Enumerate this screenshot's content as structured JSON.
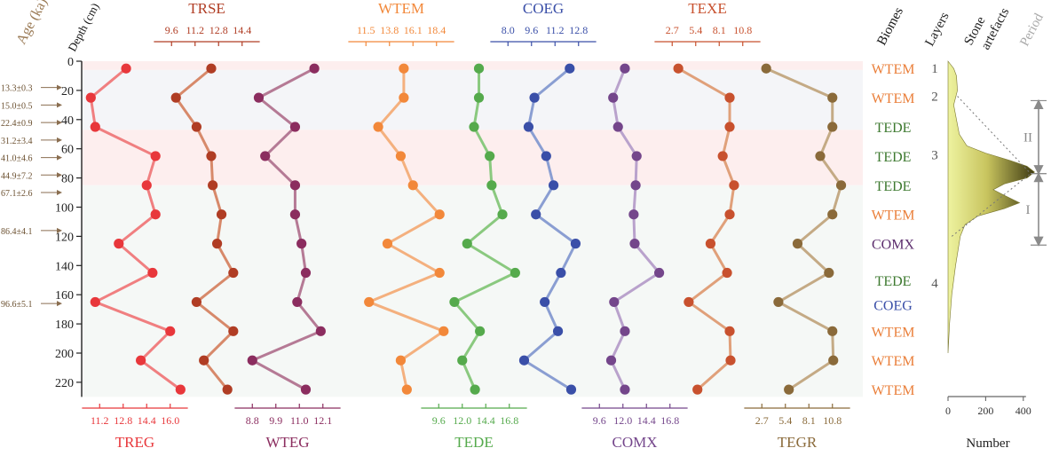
{
  "chart_data": {
    "type": "line",
    "orientation": "vertical-profiles",
    "y_axis": {
      "label": "Depth (cm)",
      "range": [
        0,
        230
      ],
      "ticks": [
        0,
        20,
        40,
        60,
        80,
        100,
        120,
        140,
        160,
        180,
        200,
        220
      ]
    },
    "age_axis": {
      "label": "Age (ka)",
      "markers": [
        {
          "depth": 18,
          "label": "13.3±0.3"
        },
        {
          "depth": 30,
          "label": "15.0±0.5"
        },
        {
          "depth": 42,
          "label": "22.4±0.9"
        },
        {
          "depth": 54,
          "label": "31.2±3.4"
        },
        {
          "depth": 66,
          "label": "41.0±4.6"
        },
        {
          "depth": 78,
          "label": "44.9±7.2"
        },
        {
          "depth": 90,
          "label": "67.1±2.6"
        },
        {
          "depth": 116,
          "label": "86.4±4.1"
        },
        {
          "depth": 166,
          "label": "96.6±5.1"
        }
      ]
    },
    "shaded_bands": [
      {
        "from": 0,
        "to": 6,
        "color": "#fdeeee"
      },
      {
        "from": 6,
        "to": 47,
        "color": "#f4f5f8"
      },
      {
        "from": 47,
        "to": 85,
        "color": "#fdeeee"
      },
      {
        "from": 85,
        "to": 230,
        "color": "#f5f8f6"
      }
    ],
    "depths": [
      5,
      25,
      45,
      65,
      85,
      105,
      125,
      145,
      165,
      185,
      205,
      225
    ],
    "series": [
      {
        "name": "TREG",
        "position": "bottom",
        "color": "#e8373b",
        "line_color": "#f07f80",
        "ticks": [
          11.2,
          12.8,
          14.4,
          16.0
        ],
        "values": [
          13.0,
          10.6,
          10.9,
          15.0,
          14.4,
          15.0,
          12.5,
          14.8,
          10.9,
          16.0,
          14.0,
          16.7
        ]
      },
      {
        "name": "TRSE",
        "position": "top",
        "color": "#b03d24",
        "line_color": "#d7896a",
        "ticks": [
          9.6,
          11.2,
          12.8,
          14.4
        ],
        "values": [
          12.3,
          9.9,
          11.3,
          12.3,
          12.4,
          13.0,
          12.7,
          13.8,
          11.3,
          13.8,
          11.8,
          13.4
        ]
      },
      {
        "name": "WTEG",
        "position": "bottom",
        "color": "#8b2d5f",
        "line_color": "#b57a95",
        "ticks": [
          8.8,
          9.9,
          11.0,
          12.1
        ],
        "values": [
          11.7,
          9.1,
          10.8,
          9.4,
          10.8,
          10.8,
          11.1,
          11.3,
          10.9,
          12.0,
          8.8,
          11.3
        ]
      },
      {
        "name": "WTEM",
        "position": "top",
        "color": "#f2883a",
        "line_color": "#f4b07e",
        "ticks": [
          11.5,
          13.8,
          16.1,
          18.4
        ],
        "values": [
          15.2,
          15.2,
          12.7,
          14.9,
          16.1,
          18.7,
          13.6,
          18.7,
          11.8,
          19.1,
          14.9,
          15.5
        ]
      },
      {
        "name": "TEDE",
        "position": "bottom",
        "color": "#55aa4c",
        "line_color": "#8ac97f",
        "ticks": [
          9.6,
          12.0,
          14.4,
          16.8
        ],
        "values": [
          13.7,
          13.7,
          13.2,
          14.8,
          15.0,
          16.1,
          12.5,
          17.4,
          11.2,
          13.8,
          12.0,
          13.3
        ]
      },
      {
        "name": "COEG",
        "position": "top",
        "color": "#3a4fa8",
        "line_color": "#8a9ed2",
        "ticks": [
          8.0,
          9.6,
          11.2,
          12.8
        ],
        "values": [
          12.2,
          9.8,
          9.4,
          10.6,
          11.1,
          9.9,
          12.6,
          11.6,
          10.5,
          11.4,
          9.1,
          12.3
        ]
      },
      {
        "name": "COMX",
        "position": "bottom",
        "color": "#74468b",
        "line_color": "#b9a2cc",
        "ticks": [
          9.6,
          12.0,
          14.4,
          16.8
        ],
        "values": [
          12.2,
          11.0,
          11.5,
          13.4,
          13.3,
          13.1,
          13.2,
          15.7,
          11.1,
          12.2,
          10.8,
          12.2
        ]
      },
      {
        "name": "TEXE",
        "position": "top",
        "color": "#c8512e",
        "line_color": "#e0a07a",
        "ticks": [
          2.7,
          5.4,
          8.1,
          10.8
        ],
        "values": [
          3.4,
          9.3,
          9.3,
          8.5,
          9.8,
          9.3,
          7.1,
          9.0,
          4.6,
          9.3,
          9.4,
          5.6
        ]
      },
      {
        "name": "TEGR",
        "position": "bottom",
        "color": "#8a6a3a",
        "line_color": "#c4aa85",
        "ticks": [
          2.7,
          5.4,
          8.1,
          10.8
        ],
        "values": [
          3.2,
          10.8,
          10.8,
          9.4,
          11.8,
          10.8,
          6.8,
          10.4,
          4.6,
          10.8,
          10.9,
          5.8
        ]
      }
    ],
    "biomes": {
      "title": "Biomes",
      "labels": [
        "WTEM",
        "WTEM",
        "TEDE",
        "TEDE",
        "TEDE",
        "WTEM",
        "COMX",
        "TEDE",
        "COEG",
        "WTEM",
        "WTEM",
        "WTEM"
      ],
      "depths": [
        5,
        25,
        45,
        65,
        85,
        105,
        125,
        150,
        167,
        185,
        205,
        225
      ],
      "colors": {
        "WTEM": "#ea7f3a",
        "TEDE": "#3e7a30",
        "COMX": "#5d2e6e",
        "COEG": "#3a4fa8"
      }
    },
    "layers": {
      "title": "Layers",
      "labels": [
        {
          "text": "1",
          "depth": 5
        },
        {
          "text": "2",
          "depth": 24
        },
        {
          "text": "3",
          "depth": 64
        },
        {
          "text": "4",
          "depth": 152
        }
      ]
    },
    "stone_artefacts": {
      "title": "Stone artefacts",
      "xlabel": "Number",
      "ticks": [
        0,
        200,
        400
      ],
      "depth_profile": [
        [
          0,
          0
        ],
        [
          5,
          30
        ],
        [
          10,
          45
        ],
        [
          20,
          50
        ],
        [
          30,
          30
        ],
        [
          40,
          45
        ],
        [
          50,
          60
        ],
        [
          58,
          100
        ],
        [
          63,
          200
        ],
        [
          68,
          330
        ],
        [
          72,
          420
        ],
        [
          76,
          460
        ],
        [
          80,
          420
        ],
        [
          84,
          300
        ],
        [
          88,
          240
        ],
        [
          92,
          300
        ],
        [
          97,
          380
        ],
        [
          101,
          300
        ],
        [
          106,
          160
        ],
        [
          112,
          90
        ],
        [
          120,
          65
        ],
        [
          140,
          40
        ],
        [
          160,
          20
        ],
        [
          180,
          8
        ],
        [
          200,
          0
        ]
      ]
    },
    "periods": {
      "title": "Period",
      "items": [
        {
          "label": "II",
          "from": 27,
          "to": 77
        },
        {
          "label": "I",
          "from": 77,
          "to": 126
        }
      ]
    }
  }
}
